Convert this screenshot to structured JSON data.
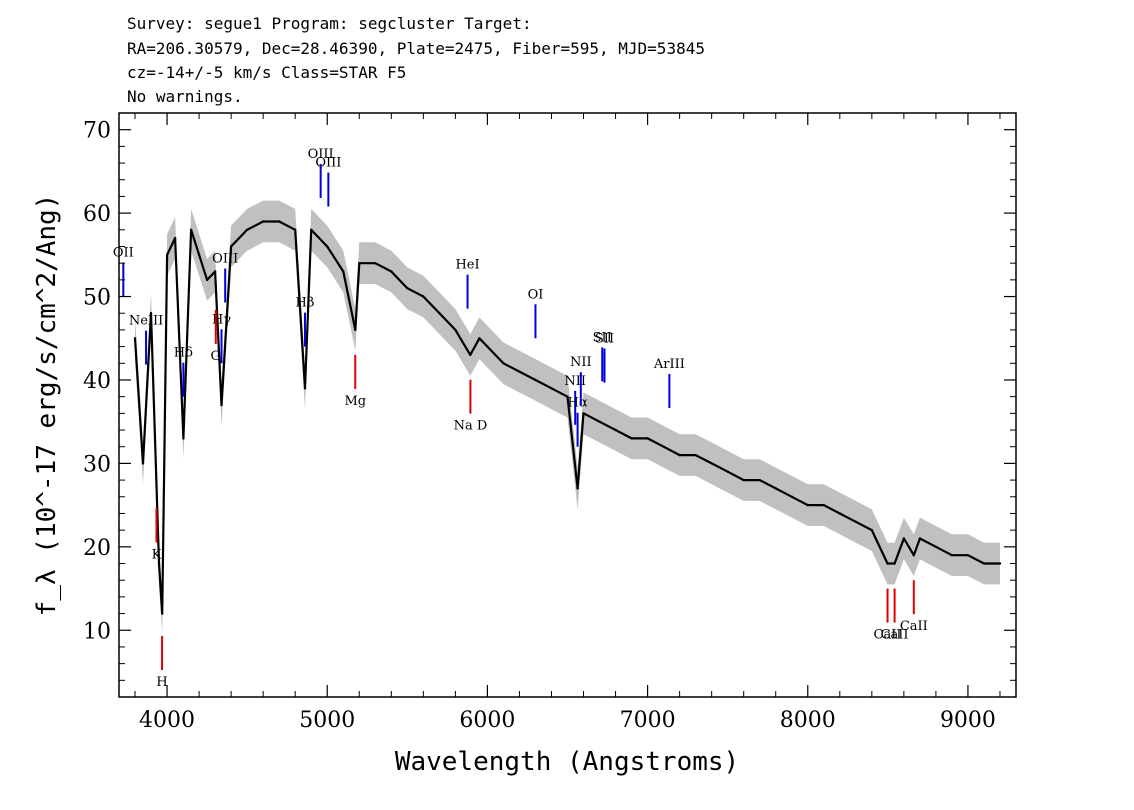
{
  "header": {
    "line1": "Survey: segue1 Program: segcluster Target:",
    "line2": "RA=206.30579, Dec=28.46390, Plate=2475, Fiber=595, MJD=53845",
    "line3": "cz=-14+/-5 km/s Class=STAR F5",
    "line4": "No warnings."
  },
  "colors": {
    "flux": "#000000",
    "error_band": "#c0c0c0",
    "emission_marker": "#0000dd",
    "absorption_marker": "#dd0000",
    "axis": "#000000"
  },
  "chart_data": {
    "type": "line",
    "xlabel": "Wavelength (Angstroms)",
    "ylabel": "f_λ (10^-17 erg/s/cm^2/Ang)",
    "xlim": [
      3700,
      9300
    ],
    "ylim": [
      2,
      72
    ],
    "x_ticks": [
      "4000",
      "5000",
      "6000",
      "7000",
      "8000",
      "9000"
    ],
    "y_ticks": [
      "10",
      "20",
      "30",
      "40",
      "50",
      "60",
      "70"
    ],
    "series": [
      {
        "role": "flux",
        "x": [
          3800,
          3850,
          3900,
          3950,
          3970,
          4000,
          4050,
          4102,
          4150,
          4200,
          4250,
          4300,
          4340,
          4400,
          4500,
          4600,
          4700,
          4800,
          4861,
          4900,
          5000,
          5100,
          5175,
          5200,
          5300,
          5400,
          5500,
          5600,
          5700,
          5800,
          5893,
          5950,
          6000,
          6100,
          6200,
          6300,
          6400,
          6500,
          6563,
          6600,
          6700,
          6800,
          6900,
          7000,
          7100,
          7200,
          7300,
          7400,
          7500,
          7600,
          7700,
          7800,
          7900,
          8000,
          8100,
          8200,
          8300,
          8400,
          8498,
          8542,
          8600,
          8662,
          8700,
          8800,
          8900,
          9000,
          9100,
          9200
        ],
        "y": [
          45,
          30,
          48,
          18,
          12,
          55,
          57,
          33,
          58,
          55,
          52,
          53,
          37,
          56,
          58,
          59,
          59,
          58,
          39,
          58,
          56,
          53,
          46,
          54,
          54,
          53,
          51,
          50,
          48,
          46,
          43,
          45,
          44,
          42,
          41,
          40,
          39,
          38,
          27,
          36,
          35,
          34,
          33,
          33,
          32,
          31,
          31,
          30,
          29,
          28,
          28,
          27,
          26,
          25,
          25,
          24,
          23,
          22,
          18,
          18,
          21,
          19,
          21,
          20,
          19,
          19,
          18,
          18
        ]
      }
    ],
    "error_halfwidth": 2.5,
    "emission_lines": [
      {
        "label": "OII",
        "wavelength": 3727
      },
      {
        "label": "NeIII",
        "wavelength": 3869
      },
      {
        "label": "Hδ",
        "wavelength": 4102
      },
      {
        "label": "Hγ",
        "wavelength": 4340
      },
      {
        "label": "OIII",
        "wavelength": 4363
      },
      {
        "label": "Hβ",
        "wavelength": 4861
      },
      {
        "label": "OIII",
        "wavelength": 4959
      },
      {
        "label": "OIII",
        "wavelength": 5007
      },
      {
        "label": "HeI",
        "wavelength": 5876
      },
      {
        "label": "OI",
        "wavelength": 6300
      },
      {
        "label": "NII",
        "wavelength": 6548
      },
      {
        "label": "Hα",
        "wavelength": 6563
      },
      {
        "label": "NII",
        "wavelength": 6583
      },
      {
        "label": "SII",
        "wavelength": 6717
      },
      {
        "label": "SII",
        "wavelength": 6731
      },
      {
        "label": "ArIII",
        "wavelength": 7136
      }
    ],
    "absorption_lines": [
      {
        "label": "K",
        "wavelength": 3934
      },
      {
        "label": "H",
        "wavelength": 3969
      },
      {
        "label": "G",
        "wavelength": 4304
      },
      {
        "label": "Mg",
        "wavelength": 5175
      },
      {
        "label": "Na D",
        "wavelength": 5894
      },
      {
        "label": "CaII",
        "wavelength": 8498
      },
      {
        "label": "CaII",
        "wavelength": 8542
      },
      {
        "label": "CaII",
        "wavelength": 8662
      }
    ]
  }
}
